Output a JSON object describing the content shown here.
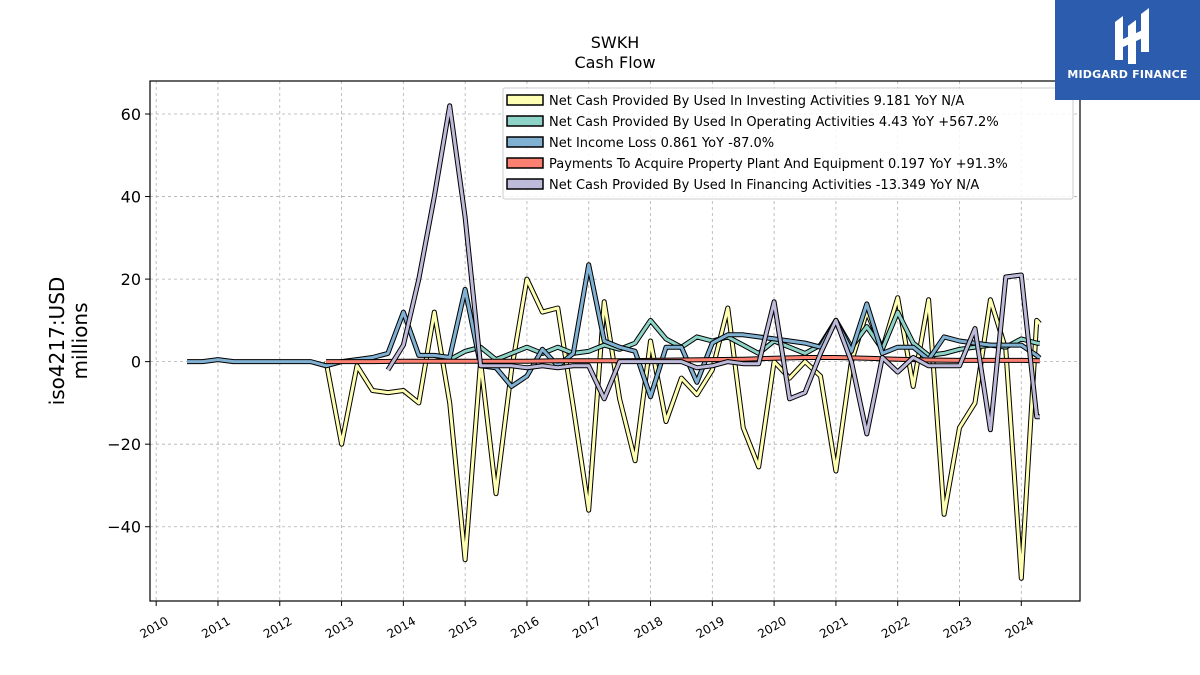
{
  "brand": {
    "name": "MIDGARD FINANCE",
    "color": "#2b5cae"
  },
  "chart_data": {
    "type": "line",
    "title": "SWKH",
    "subtitle": "Cash Flow",
    "ylabel_lines": [
      "iso4217:USD",
      "millions"
    ],
    "xlabel": "",
    "xlim": [
      2009.9,
      2024.95
    ],
    "ylim": [
      -58,
      68
    ],
    "yticks": [
      -40,
      -20,
      0,
      20,
      40,
      60
    ],
    "xticks": [
      2010,
      2011,
      2012,
      2013,
      2014,
      2015,
      2016,
      2017,
      2018,
      2019,
      2020,
      2021,
      2022,
      2023,
      2024
    ],
    "grid": true,
    "legend_position": "top-right",
    "series": [
      {
        "name": "Net Cash Provided By Used In Investing Activities",
        "legend": "Net Cash Provided By Used In Investing Activities  9.181 YoY N/A",
        "color": "#ffffb3",
        "x": [
          2012.75,
          2013.0,
          2013.25,
          2013.5,
          2013.75,
          2014.0,
          2014.25,
          2014.5,
          2014.75,
          2015.0,
          2015.25,
          2015.5,
          2015.75,
          2016.0,
          2016.25,
          2016.5,
          2016.75,
          2017.0,
          2017.25,
          2017.5,
          2017.75,
          2018.0,
          2018.25,
          2018.5,
          2018.75,
          2019.0,
          2019.25,
          2019.5,
          2019.75,
          2020.0,
          2020.25,
          2020.5,
          2020.75,
          2021.0,
          2021.25,
          2021.5,
          2021.75,
          2022.0,
          2022.25,
          2022.5,
          2022.75,
          2023.0,
          2023.25,
          2023.5,
          2023.75,
          2024.0,
          2024.25,
          2024.3
        ],
        "values": [
          0.0,
          -20.0,
          -1.0,
          -7.0,
          -7.5,
          -7.0,
          -10.0,
          12.0,
          -10.0,
          -48.0,
          0.0,
          -32.0,
          -2.0,
          20.0,
          12.0,
          13.0,
          -11.0,
          -36.0,
          14.5,
          -9.0,
          -24.0,
          5.0,
          -14.5,
          -4.0,
          -8.0,
          -2.0,
          13.0,
          -16.0,
          -25.5,
          0.0,
          -4.0,
          0.0,
          -3.5,
          -26.5,
          0.0,
          12.0,
          3.0,
          15.5,
          -6.0,
          15.0,
          -37.0,
          -16.0,
          -10.0,
          15.0,
          3.0,
          -52.5,
          10.0,
          9.181
        ]
      },
      {
        "name": "Net Cash Provided By Used In Operating Activities",
        "legend": "Net Cash Provided By Used In Operating Activities  4.43 YoY +567.2%",
        "color": "#8dd3c7",
        "x": [
          2014.5,
          2014.75,
          2015.0,
          2015.25,
          2015.5,
          2015.75,
          2016.0,
          2016.25,
          2016.5,
          2016.75,
          2017.0,
          2017.25,
          2017.5,
          2017.75,
          2018.0,
          2018.25,
          2018.5,
          2018.75,
          2019.0,
          2019.25,
          2019.5,
          2019.75,
          2020.0,
          2020.25,
          2020.5,
          2020.75,
          2021.0,
          2021.25,
          2021.5,
          2021.75,
          2022.0,
          2022.25,
          2022.5,
          2022.75,
          2023.0,
          2023.25,
          2023.5,
          2023.75,
          2024.0,
          2024.25,
          2024.3
        ],
        "values": [
          1.5,
          0.5,
          2.5,
          3.5,
          0.5,
          2.0,
          3.5,
          2.0,
          3.5,
          2.0,
          2.5,
          4.0,
          3.0,
          4.5,
          10.0,
          5.5,
          3.5,
          6.0,
          5.0,
          6.0,
          4.0,
          2.0,
          5.0,
          3.5,
          2.0,
          4.0,
          10.0,
          3.5,
          8.5,
          3.0,
          12.0,
          4.5,
          1.5,
          2.0,
          3.0,
          3.5,
          4.0,
          3.5,
          5.5,
          4.5,
          4.43
        ]
      },
      {
        "name": "Net Income Loss",
        "legend": "Net Income Loss  0.861 YoY -87.0%",
        "color": "#80b1d3",
        "x": [
          2010.5,
          2010.75,
          2011.0,
          2011.25,
          2011.5,
          2011.75,
          2012.0,
          2012.25,
          2012.5,
          2012.75,
          2013.0,
          2013.25,
          2013.5,
          2013.75,
          2014.0,
          2014.25,
          2014.5,
          2014.75,
          2015.0,
          2015.25,
          2015.5,
          2015.75,
          2016.0,
          2016.25,
          2016.5,
          2016.75,
          2017.0,
          2017.25,
          2017.5,
          2017.75,
          2018.0,
          2018.25,
          2018.5,
          2018.75,
          2019.0,
          2019.25,
          2019.5,
          2019.75,
          2020.0,
          2020.25,
          2020.5,
          2020.75,
          2021.0,
          2021.25,
          2021.5,
          2021.75,
          2022.0,
          2022.25,
          2022.5,
          2022.75,
          2023.0,
          2023.25,
          2023.5,
          2023.75,
          2024.0,
          2024.25,
          2024.3
        ],
        "values": [
          0.0,
          0.0,
          0.5,
          0.0,
          0.0,
          0.0,
          0.0,
          0.0,
          0.0,
          -1.0,
          0.0,
          0.5,
          1.0,
          2.0,
          12.0,
          1.5,
          1.5,
          1.0,
          17.5,
          -1.0,
          -1.5,
          -6.0,
          -3.5,
          3.0,
          -1.0,
          2.0,
          23.5,
          5.0,
          3.5,
          2.5,
          -8.5,
          3.5,
          3.5,
          -5.0,
          4.5,
          6.5,
          6.5,
          6.0,
          5.5,
          5.0,
          4.5,
          3.5,
          10.0,
          2.5,
          14.0,
          2.0,
          3.5,
          3.5,
          0.5,
          6.0,
          5.0,
          4.5,
          4.0,
          4.0,
          4.0,
          1.5,
          0.861
        ]
      },
      {
        "name": "Payments To Acquire Property Plant And Equipment",
        "legend": "Payments To Acquire Property Plant And Equipment  0.197 YoY +91.3%",
        "color": "#fb8072",
        "x": [
          2012.75,
          2013.0,
          2013.5,
          2014.0,
          2014.5,
          2015.0,
          2015.5,
          2016.0,
          2016.5,
          2017.0,
          2017.5,
          2018.0,
          2018.5,
          2019.0,
          2019.5,
          2020.0,
          2020.5,
          2021.0,
          2021.5,
          2022.0,
          2022.5,
          2023.0,
          2023.5,
          2024.0,
          2024.3
        ],
        "values": [
          0.0,
          0.0,
          0.0,
          0.1,
          0.1,
          0.1,
          0.1,
          0.1,
          0.2,
          0.2,
          0.2,
          0.3,
          0.4,
          0.5,
          0.6,
          0.8,
          1.0,
          1.0,
          0.8,
          0.6,
          0.4,
          0.3,
          0.3,
          0.3,
          0.197
        ]
      },
      {
        "name": "Net Cash Provided By Used In Financing Activities",
        "legend": "Net Cash Provided By Used In Financing Activities  -13.349 YoY N/A",
        "color": "#bebada",
        "x": [
          2013.75,
          2014.0,
          2014.25,
          2014.5,
          2014.75,
          2015.0,
          2015.25,
          2015.5,
          2015.75,
          2016.0,
          2016.25,
          2016.5,
          2016.75,
          2017.0,
          2017.25,
          2017.5,
          2017.75,
          2018.0,
          2018.25,
          2018.5,
          2018.75,
          2019.0,
          2019.25,
          2019.5,
          2019.75,
          2020.0,
          2020.25,
          2020.5,
          2020.75,
          2021.0,
          2021.25,
          2021.5,
          2021.75,
          2022.0,
          2022.25,
          2022.5,
          2022.75,
          2023.0,
          2023.25,
          2023.5,
          2023.75,
          2024.0,
          2024.25,
          2024.3
        ],
        "values": [
          -2.0,
          4.0,
          20.0,
          40.0,
          62.0,
          35.0,
          -1.0,
          -1.0,
          -1.0,
          -1.5,
          -1.0,
          -1.5,
          -1.0,
          -1.0,
          -9.0,
          0.0,
          0.0,
          0.0,
          0.0,
          0.0,
          -1.5,
          -1.0,
          0.0,
          -0.5,
          -0.5,
          14.5,
          -9.0,
          -7.5,
          2.0,
          10.0,
          0.0,
          -17.5,
          1.0,
          -2.5,
          1.0,
          -1.0,
          -1.0,
          -1.0,
          8.0,
          -16.5,
          20.5,
          21.0,
          -13.349,
          -13.349
        ]
      }
    ]
  }
}
